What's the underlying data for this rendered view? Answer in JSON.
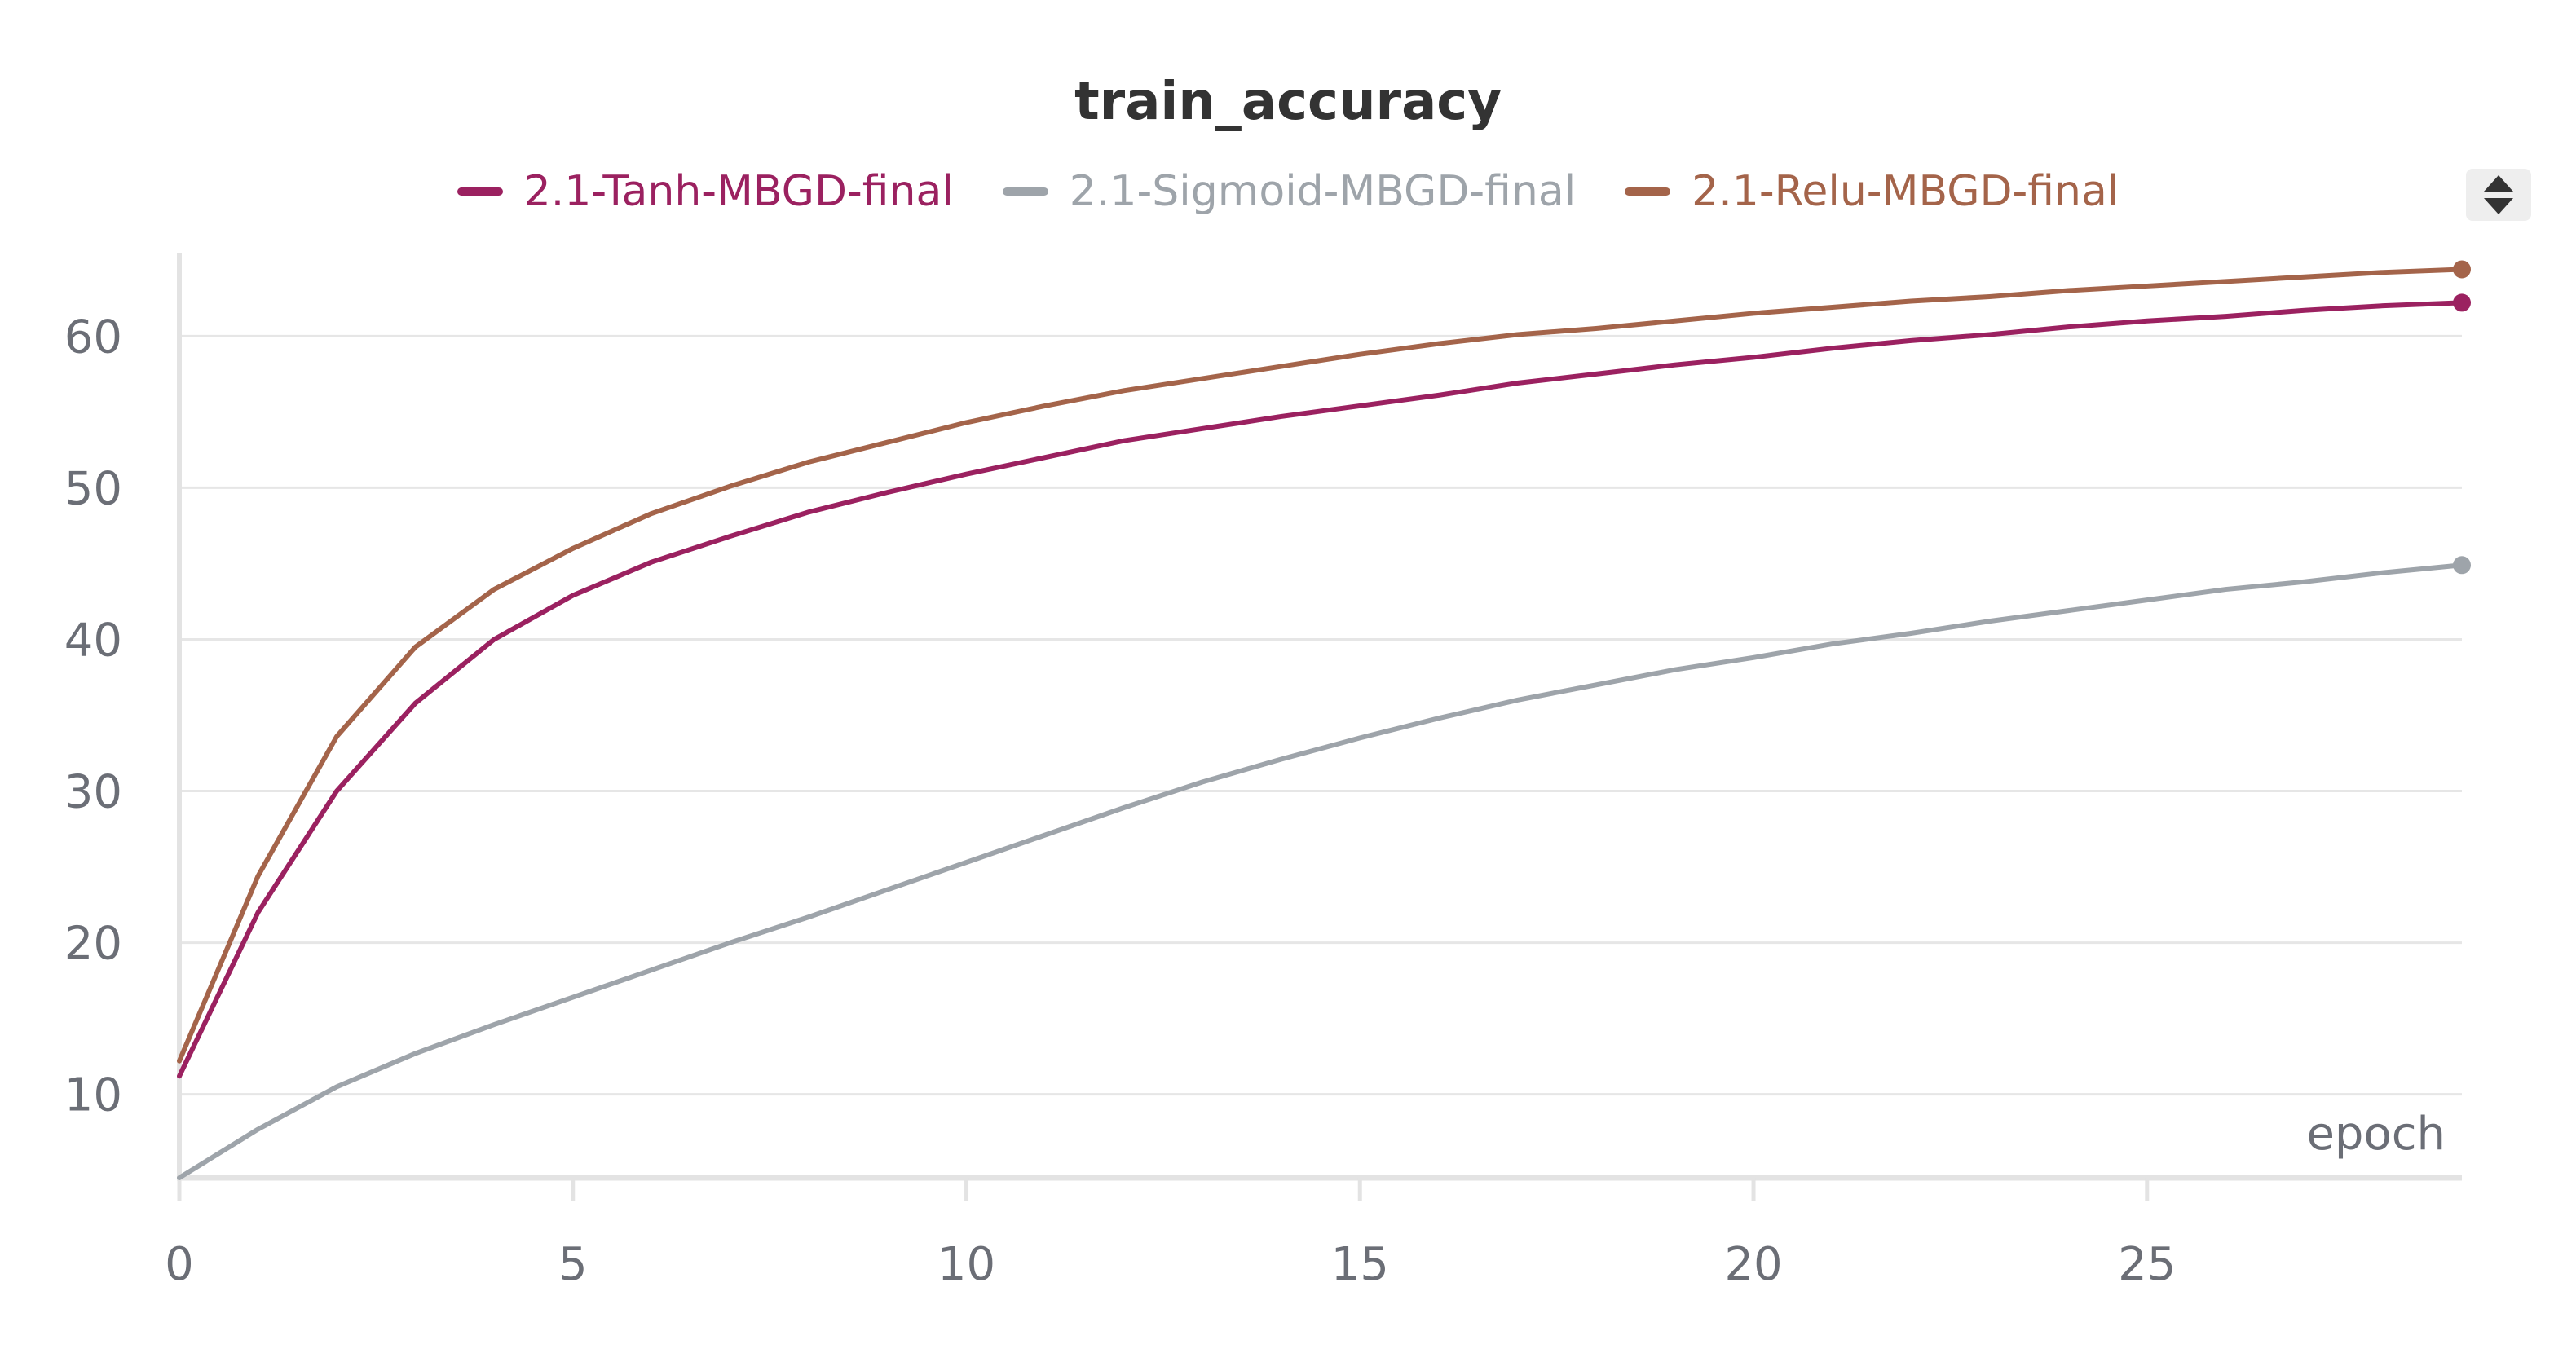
{
  "chart_data": {
    "type": "line",
    "title": "train_accuracy",
    "xlabel": "epoch",
    "ylabel": "",
    "xlim": [
      0,
      29
    ],
    "ylim": [
      4.5,
      65.5
    ],
    "x_ticks": [
      0,
      5,
      10,
      15,
      20,
      25
    ],
    "y_ticks": [
      10,
      20,
      30,
      40,
      50,
      60
    ],
    "grid": true,
    "legend_position": "top",
    "series": [
      {
        "name": "2.1-Tanh-MBGD-final",
        "color": "#9b2160",
        "x": [
          0,
          1,
          2,
          3,
          4,
          5,
          6,
          7,
          8,
          9,
          10,
          11,
          12,
          13,
          14,
          15,
          16,
          17,
          18,
          19,
          20,
          21,
          22,
          23,
          24,
          25,
          26,
          27,
          28,
          29
        ],
        "values": [
          11.2,
          22.0,
          30.0,
          35.8,
          40.0,
          42.9,
          45.1,
          46.8,
          48.4,
          49.7,
          50.9,
          52.0,
          53.1,
          53.9,
          54.7,
          55.4,
          56.1,
          56.9,
          57.5,
          58.1,
          58.6,
          59.2,
          59.7,
          60.1,
          60.6,
          61.0,
          61.3,
          61.7,
          62.0,
          62.2
        ]
      },
      {
        "name": "2.1-Sigmoid-MBGD-final",
        "color": "#9ea4aa",
        "x": [
          0,
          1,
          2,
          3,
          4,
          5,
          6,
          7,
          8,
          9,
          10,
          11,
          12,
          13,
          14,
          15,
          16,
          17,
          18,
          19,
          20,
          21,
          22,
          23,
          24,
          25,
          26,
          27,
          28,
          29
        ],
        "values": [
          4.5,
          7.7,
          10.5,
          12.7,
          14.6,
          16.4,
          18.2,
          20.0,
          21.7,
          23.5,
          25.3,
          27.1,
          28.9,
          30.6,
          32.1,
          33.5,
          34.8,
          36.0,
          37.0,
          38.0,
          38.8,
          39.7,
          40.4,
          41.2,
          41.9,
          42.6,
          43.3,
          43.8,
          44.4,
          44.9
        ]
      },
      {
        "name": "2.1-Relu-MBGD-final",
        "color": "#a4644a",
        "x": [
          0,
          1,
          2,
          3,
          4,
          5,
          6,
          7,
          8,
          9,
          10,
          11,
          12,
          13,
          14,
          15,
          16,
          17,
          18,
          19,
          20,
          21,
          22,
          23,
          24,
          25,
          26,
          27,
          28,
          29
        ],
        "values": [
          12.2,
          24.4,
          33.6,
          39.5,
          43.3,
          46.0,
          48.3,
          50.1,
          51.7,
          53.0,
          54.3,
          55.4,
          56.4,
          57.2,
          58.0,
          58.8,
          59.5,
          60.1,
          60.5,
          61.0,
          61.5,
          61.9,
          62.3,
          62.6,
          63.0,
          63.3,
          63.6,
          63.9,
          64.2,
          64.4
        ]
      }
    ]
  },
  "ui": {
    "menu_icon": "sort-arrows-icon"
  }
}
